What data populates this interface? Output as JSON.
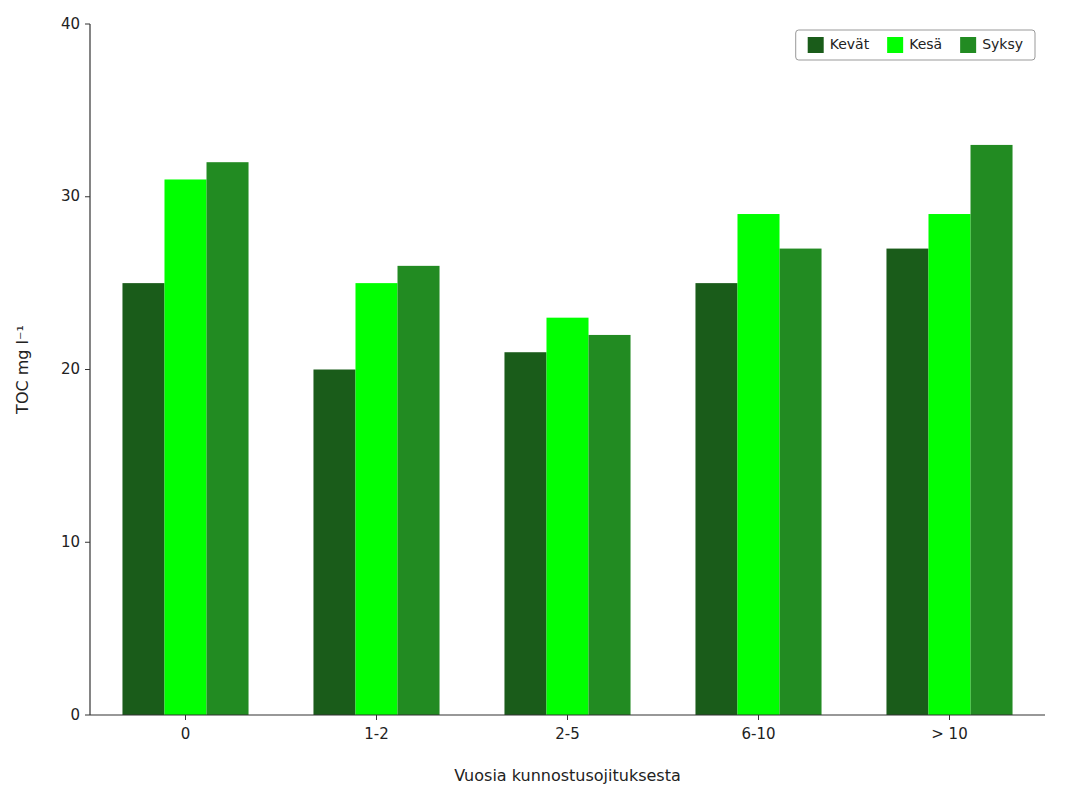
{
  "chart_data": {
    "type": "bar",
    "x_label": "Vuosia kunnostusojituksesta",
    "y_label": "TOC mg l⁻¹",
    "categories": [
      "0",
      "1-2",
      "2-5",
      "6-10",
      "> 10"
    ],
    "series": [
      {
        "name": "Kevät",
        "color": "#1a5c1a",
        "values": [
          25.0,
          20.0,
          21.0,
          25.0,
          27.0
        ]
      },
      {
        "name": "Kesä",
        "color": "#00ff00",
        "values": [
          31.0,
          25.0,
          23.0,
          29.0,
          29.0
        ]
      },
      {
        "name": "Syksy",
        "color": "#228b22",
        "values": [
          32.0,
          26.0,
          22.0,
          27.0,
          33.0
        ]
      }
    ],
    "ylim": [
      0,
      40
    ],
    "yticks": [
      0,
      10,
      20,
      30,
      40
    ],
    "grid": false,
    "legend": "upper right"
  }
}
